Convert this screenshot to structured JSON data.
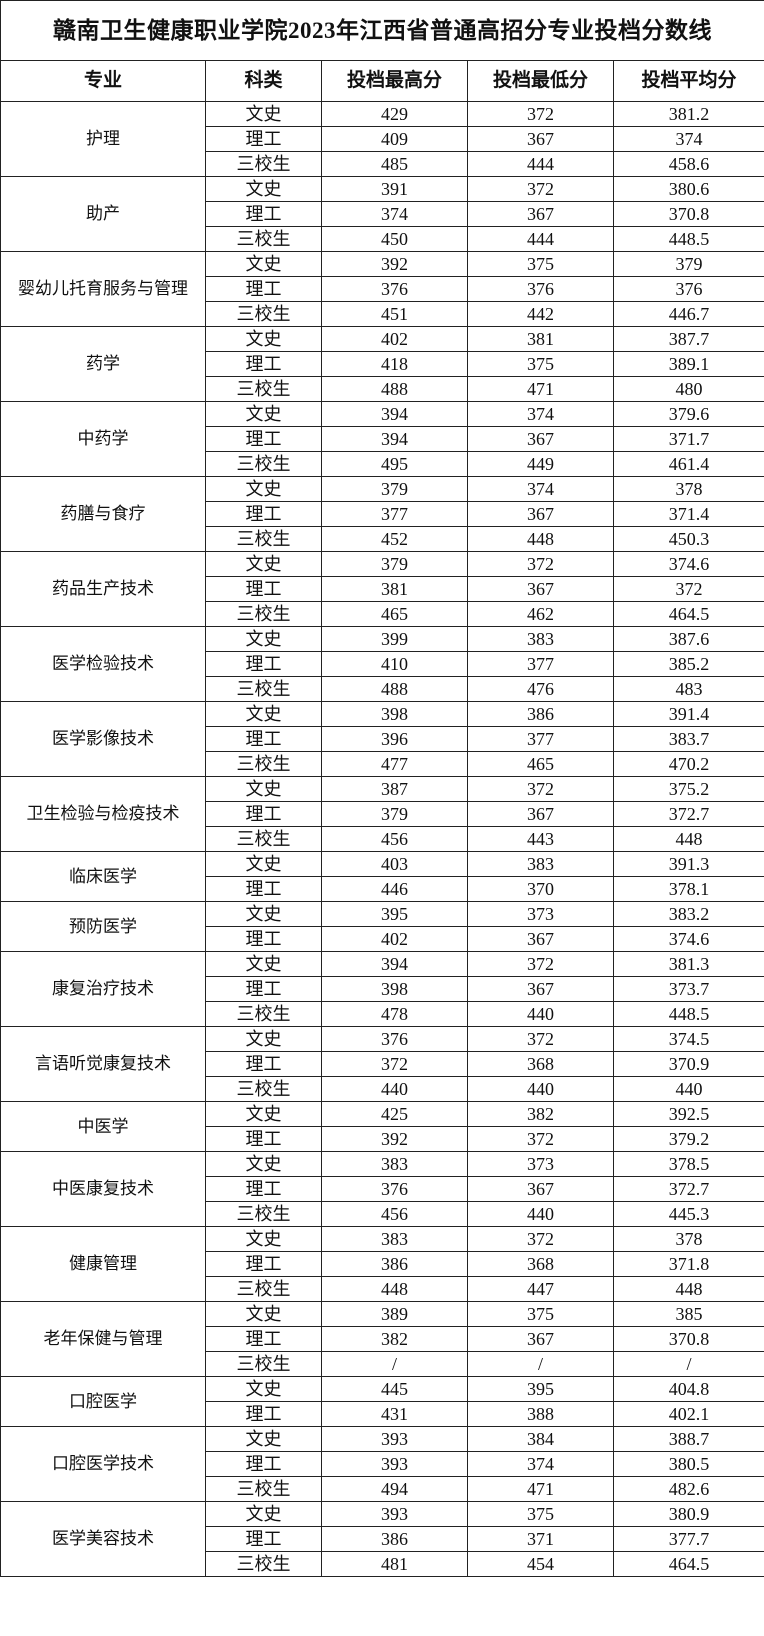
{
  "title": "赣南卫生健康职业学院2023年江西省普通高招分专业投档分数线",
  "headers": [
    "专业",
    "科类",
    "投档最高分",
    "投档最低分",
    "投档平均分"
  ],
  "majors": [
    {
      "name": "护理",
      "rows": [
        [
          "文史",
          "429",
          "372",
          "381.2"
        ],
        [
          "理工",
          "409",
          "367",
          "374"
        ],
        [
          "三校生",
          "485",
          "444",
          "458.6"
        ]
      ]
    },
    {
      "name": "助产",
      "rows": [
        [
          "文史",
          "391",
          "372",
          "380.6"
        ],
        [
          "理工",
          "374",
          "367",
          "370.8"
        ],
        [
          "三校生",
          "450",
          "444",
          "448.5"
        ]
      ]
    },
    {
      "name": "婴幼儿托育服务与管理",
      "rows": [
        [
          "文史",
          "392",
          "375",
          "379"
        ],
        [
          "理工",
          "376",
          "376",
          "376"
        ],
        [
          "三校生",
          "451",
          "442",
          "446.7"
        ]
      ]
    },
    {
      "name": "药学",
      "rows": [
        [
          "文史",
          "402",
          "381",
          "387.7"
        ],
        [
          "理工",
          "418",
          "375",
          "389.1"
        ],
        [
          "三校生",
          "488",
          "471",
          "480"
        ]
      ]
    },
    {
      "name": "中药学",
      "rows": [
        [
          "文史",
          "394",
          "374",
          "379.6"
        ],
        [
          "理工",
          "394",
          "367",
          "371.7"
        ],
        [
          "三校生",
          "495",
          "449",
          "461.4"
        ]
      ]
    },
    {
      "name": "药膳与食疗",
      "rows": [
        [
          "文史",
          "379",
          "374",
          "378"
        ],
        [
          "理工",
          "377",
          "367",
          "371.4"
        ],
        [
          "三校生",
          "452",
          "448",
          "450.3"
        ]
      ]
    },
    {
      "name": "药品生产技术",
      "rows": [
        [
          "文史",
          "379",
          "372",
          "374.6"
        ],
        [
          "理工",
          "381",
          "367",
          "372"
        ],
        [
          "三校生",
          "465",
          "462",
          "464.5"
        ]
      ]
    },
    {
      "name": "医学检验技术",
      "rows": [
        [
          "文史",
          "399",
          "383",
          "387.6"
        ],
        [
          "理工",
          "410",
          "377",
          "385.2"
        ],
        [
          "三校生",
          "488",
          "476",
          "483"
        ]
      ]
    },
    {
      "name": "医学影像技术",
      "rows": [
        [
          "文史",
          "398",
          "386",
          "391.4"
        ],
        [
          "理工",
          "396",
          "377",
          "383.7"
        ],
        [
          "三校生",
          "477",
          "465",
          "470.2"
        ]
      ]
    },
    {
      "name": "卫生检验与检疫技术",
      "rows": [
        [
          "文史",
          "387",
          "372",
          "375.2"
        ],
        [
          "理工",
          "379",
          "367",
          "372.7"
        ],
        [
          "三校生",
          "456",
          "443",
          "448"
        ]
      ]
    },
    {
      "name": "临床医学",
      "rows": [
        [
          "文史",
          "403",
          "383",
          "391.3"
        ],
        [
          "理工",
          "446",
          "370",
          "378.1"
        ]
      ]
    },
    {
      "name": "预防医学",
      "rows": [
        [
          "文史",
          "395",
          "373",
          "383.2"
        ],
        [
          "理工",
          "402",
          "367",
          "374.6"
        ]
      ]
    },
    {
      "name": "康复治疗技术",
      "rows": [
        [
          "文史",
          "394",
          "372",
          "381.3"
        ],
        [
          "理工",
          "398",
          "367",
          "373.7"
        ],
        [
          "三校生",
          "478",
          "440",
          "448.5"
        ]
      ]
    },
    {
      "name": "言语听觉康复技术",
      "rows": [
        [
          "文史",
          "376",
          "372",
          "374.5"
        ],
        [
          "理工",
          "372",
          "368",
          "370.9"
        ],
        [
          "三校生",
          "440",
          "440",
          "440"
        ]
      ]
    },
    {
      "name": "中医学",
      "rows": [
        [
          "文史",
          "425",
          "382",
          "392.5"
        ],
        [
          "理工",
          "392",
          "372",
          "379.2"
        ]
      ]
    },
    {
      "name": "中医康复技术",
      "rows": [
        [
          "文史",
          "383",
          "373",
          "378.5"
        ],
        [
          "理工",
          "376",
          "367",
          "372.7"
        ],
        [
          "三校生",
          "456",
          "440",
          "445.3"
        ]
      ]
    },
    {
      "name": "健康管理",
      "rows": [
        [
          "文史",
          "383",
          "372",
          "378"
        ],
        [
          "理工",
          "386",
          "368",
          "371.8"
        ],
        [
          "三校生",
          "448",
          "447",
          "448"
        ]
      ]
    },
    {
      "name": "老年保健与管理",
      "rows": [
        [
          "文史",
          "389",
          "375",
          "385"
        ],
        [
          "理工",
          "382",
          "367",
          "370.8"
        ],
        [
          "三校生",
          "/",
          "/",
          "/"
        ]
      ]
    },
    {
      "name": "口腔医学",
      "rows": [
        [
          "文史",
          "445",
          "395",
          "404.8"
        ],
        [
          "理工",
          "431",
          "388",
          "402.1"
        ]
      ]
    },
    {
      "name": "口腔医学技术",
      "rows": [
        [
          "文史",
          "393",
          "384",
          "388.7"
        ],
        [
          "理工",
          "393",
          "374",
          "380.5"
        ],
        [
          "三校生",
          "494",
          "471",
          "482.6"
        ]
      ]
    },
    {
      "name": "医学美容技术",
      "rows": [
        [
          "文史",
          "393",
          "375",
          "380.9"
        ],
        [
          "理工",
          "386",
          "371",
          "377.7"
        ],
        [
          "三校生",
          "481",
          "454",
          "464.5"
        ]
      ]
    }
  ]
}
